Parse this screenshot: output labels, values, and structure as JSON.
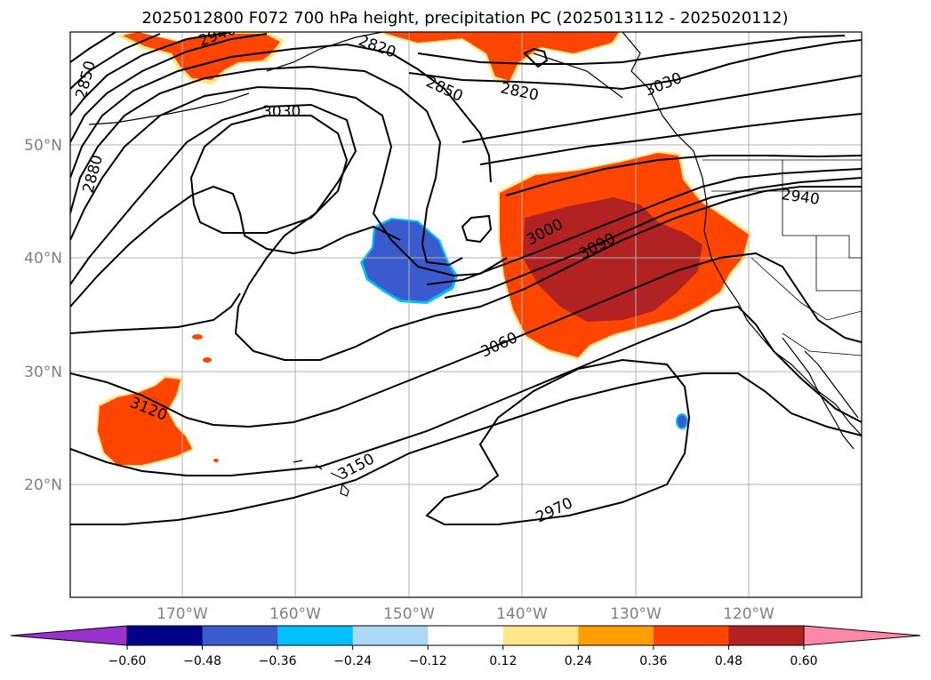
{
  "title": "2025012800 F072 700 hPa height, precipitation PC (2025013112 - 2025020112)",
  "latitude_labels": [
    "50°N",
    "40°N",
    "30°N",
    "20°N"
  ],
  "longitude_labels": [
    "170°W",
    "160°W",
    "150°W",
    "140°W",
    "130°W",
    "120°W"
  ],
  "contour_labels": [
    "2850",
    "2880",
    "2940",
    "2820",
    "2850",
    "2820",
    "3030",
    "3030",
    "2940",
    "3000",
    "3090",
    "3060",
    "3120",
    "3150",
    "2970"
  ],
  "colorbar": {
    "ticks": [
      "−0.60",
      "−0.48",
      "−0.36",
      "−0.24",
      "−0.12",
      "0.12",
      "0.24",
      "0.36",
      "0.48",
      "0.60"
    ],
    "colors": [
      "#9932cc",
      "#00008b",
      "#3a5bcd",
      "#00bfff",
      "#add8f5",
      "#ffffff",
      "#ffe68a",
      "#ffa000",
      "#ff4500",
      "#b22222",
      "#ff88a8"
    ]
  },
  "colors": {
    "precip_orange": "#ff4500",
    "precip_red": "#b22222",
    "precip_yellow": "#ffe68a",
    "precip_blue": "#3a5bcd",
    "precip_cyan": "#00bfff"
  }
}
